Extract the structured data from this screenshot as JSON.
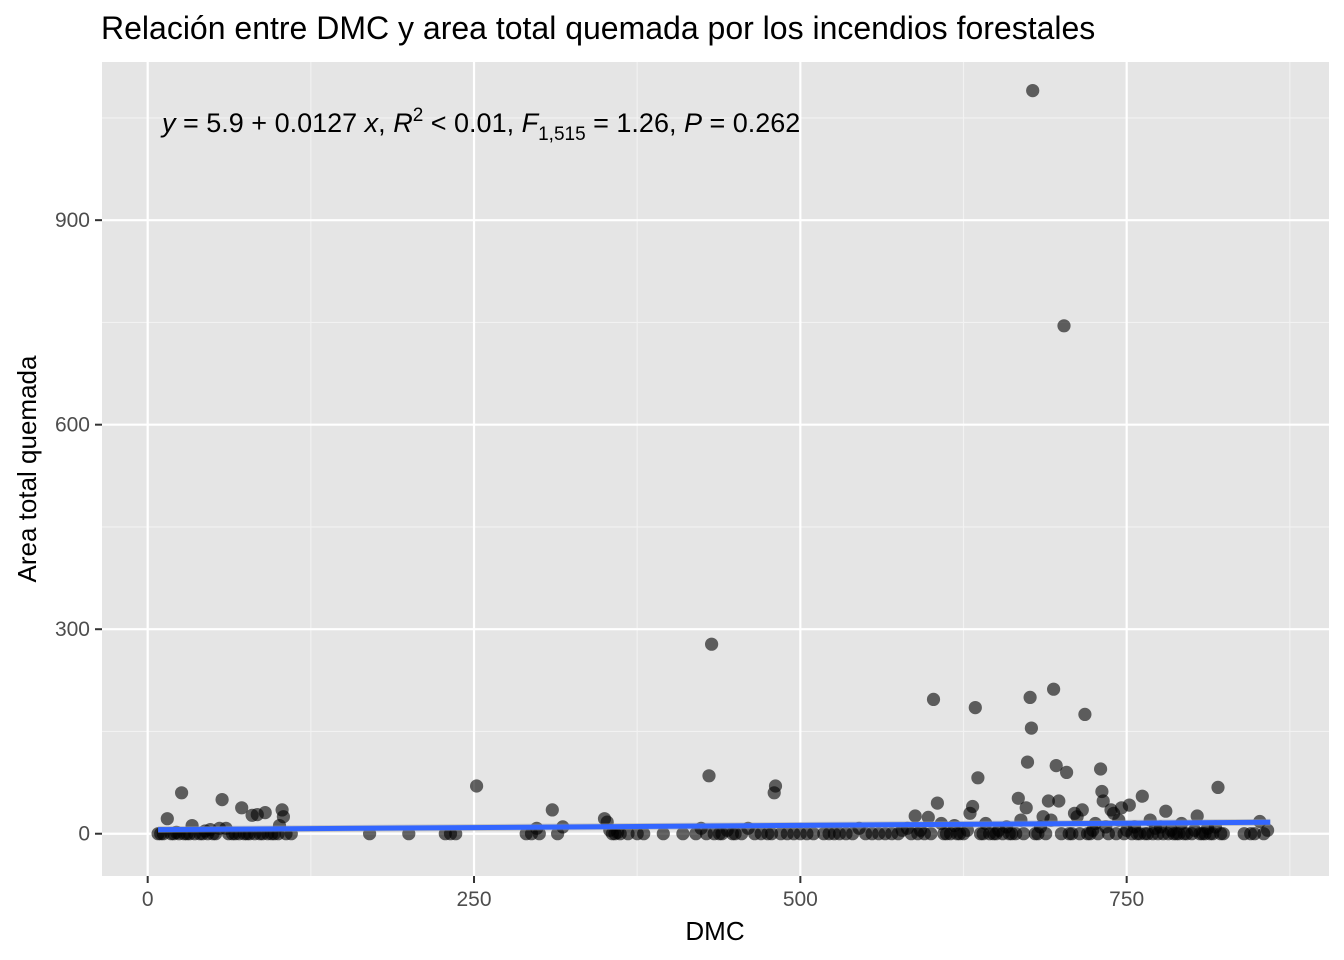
{
  "chart_data": {
    "type": "scatter",
    "title": "Relación entre DMC y area total quemada por los incendios forestales",
    "xlabel": "DMC",
    "ylabel": "Area total quemada",
    "xlim": [
      -35,
      905
    ],
    "ylim": [
      -62,
      1132
    ],
    "x_ticks": [
      0,
      250,
      500,
      750
    ],
    "x_tick_labels": [
      "0",
      "250",
      "500",
      "750"
    ],
    "y_ticks": [
      0,
      300,
      600,
      900
    ],
    "y_tick_labels": [
      "0",
      "300",
      "600",
      "900"
    ],
    "grid": true,
    "background": "#e5e5e5",
    "point_color": "#000000",
    "point_opacity": 0.6,
    "line_color": "#3366ff",
    "ribbon_color": "#999999",
    "annotation": {
      "y_var": "y",
      "equation_rhs": " = 5.9 + 0.0127 ",
      "x_var": "x",
      "r_var": "R",
      "r_sup": "2",
      "r_rest": " < 0.01, ",
      "f_var": "F",
      "f_sub": "1,515",
      "f_rest": " = 1.26, ",
      "p_var": "P",
      "p_rest": " = 0.262"
    },
    "fit": {
      "intercept": 5.9,
      "slope": 0.0127,
      "x_range": [
        8,
        860
      ]
    },
    "points": [
      [
        8,
        0
      ],
      [
        10,
        0
      ],
      [
        12,
        0
      ],
      [
        15,
        22
      ],
      [
        18,
        0
      ],
      [
        20,
        0
      ],
      [
        22,
        2
      ],
      [
        24,
        0
      ],
      [
        26,
        60
      ],
      [
        28,
        0
      ],
      [
        30,
        0
      ],
      [
        32,
        0
      ],
      [
        34,
        12
      ],
      [
        36,
        0
      ],
      [
        40,
        0
      ],
      [
        42,
        0
      ],
      [
        44,
        4
      ],
      [
        46,
        0
      ],
      [
        48,
        6
      ],
      [
        50,
        0
      ],
      [
        52,
        0
      ],
      [
        55,
        8
      ],
      [
        57,
        50
      ],
      [
        60,
        8
      ],
      [
        62,
        0
      ],
      [
        65,
        0
      ],
      [
        67,
        0
      ],
      [
        70,
        0
      ],
      [
        72,
        38
      ],
      [
        74,
        0
      ],
      [
        76,
        0
      ],
      [
        78,
        0
      ],
      [
        80,
        27
      ],
      [
        82,
        0
      ],
      [
        84,
        28
      ],
      [
        86,
        0
      ],
      [
        88,
        0
      ],
      [
        90,
        31
      ],
      [
        92,
        0
      ],
      [
        95,
        0
      ],
      [
        97,
        0
      ],
      [
        100,
        0
      ],
      [
        101,
        12
      ],
      [
        103,
        35
      ],
      [
        104,
        25
      ],
      [
        106,
        0
      ],
      [
        110,
        0
      ],
      [
        170,
        0
      ],
      [
        200,
        0
      ],
      [
        228,
        0
      ],
      [
        232,
        0
      ],
      [
        236,
        0
      ],
      [
        252,
        70
      ],
      [
        290,
        0
      ],
      [
        294,
        0
      ],
      [
        298,
        8
      ],
      [
        300,
        0
      ],
      [
        310,
        35
      ],
      [
        314,
        0
      ],
      [
        318,
        10
      ],
      [
        350,
        22
      ],
      [
        352,
        17
      ],
      [
        354,
        5
      ],
      [
        356,
        0
      ],
      [
        358,
        0
      ],
      [
        360,
        2
      ],
      [
        362,
        0
      ],
      [
        368,
        0
      ],
      [
        375,
        0
      ],
      [
        380,
        0
      ],
      [
        395,
        0
      ],
      [
        410,
        0
      ],
      [
        420,
        0
      ],
      [
        424,
        8
      ],
      [
        428,
        0
      ],
      [
        430,
        85
      ],
      [
        432,
        278
      ],
      [
        434,
        0
      ],
      [
        438,
        0
      ],
      [
        440,
        0
      ],
      [
        444,
        5
      ],
      [
        448,
        0
      ],
      [
        450,
        0
      ],
      [
        455,
        0
      ],
      [
        460,
        8
      ],
      [
        465,
        0
      ],
      [
        470,
        0
      ],
      [
        475,
        0
      ],
      [
        478,
        0
      ],
      [
        480,
        60
      ],
      [
        481,
        70
      ],
      [
        485,
        0
      ],
      [
        490,
        0
      ],
      [
        495,
        0
      ],
      [
        500,
        0
      ],
      [
        505,
        0
      ],
      [
        510,
        0
      ],
      [
        518,
        0
      ],
      [
        522,
        0
      ],
      [
        526,
        0
      ],
      [
        530,
        0
      ],
      [
        535,
        0
      ],
      [
        540,
        0
      ],
      [
        545,
        8
      ],
      [
        550,
        0
      ],
      [
        555,
        0
      ],
      [
        560,
        0
      ],
      [
        565,
        0
      ],
      [
        570,
        0
      ],
      [
        575,
        0
      ],
      [
        578,
        5
      ],
      [
        582,
        8
      ],
      [
        585,
        0
      ],
      [
        588,
        26
      ],
      [
        590,
        0
      ],
      [
        592,
        5
      ],
      [
        595,
        0
      ],
      [
        598,
        24
      ],
      [
        600,
        0
      ],
      [
        602,
        197
      ],
      [
        605,
        45
      ],
      [
        608,
        15
      ],
      [
        610,
        0
      ],
      [
        612,
        0
      ],
      [
        615,
        0
      ],
      [
        618,
        12
      ],
      [
        620,
        0
      ],
      [
        622,
        0
      ],
      [
        625,
        0
      ],
      [
        628,
        5
      ],
      [
        630,
        30
      ],
      [
        632,
        40
      ],
      [
        634,
        185
      ],
      [
        636,
        82
      ],
      [
        638,
        0
      ],
      [
        640,
        0
      ],
      [
        642,
        15
      ],
      [
        645,
        0
      ],
      [
        648,
        0
      ],
      [
        650,
        0
      ],
      [
        652,
        5
      ],
      [
        655,
        0
      ],
      [
        658,
        10
      ],
      [
        660,
        0
      ],
      [
        662,
        0
      ],
      [
        665,
        0
      ],
      [
        667,
        52
      ],
      [
        669,
        20
      ],
      [
        671,
        0
      ],
      [
        673,
        38
      ],
      [
        674,
        105
      ],
      [
        676,
        200
      ],
      [
        677,
        155
      ],
      [
        678,
        1090
      ],
      [
        680,
        0
      ],
      [
        682,
        0
      ],
      [
        684,
        10
      ],
      [
        686,
        25
      ],
      [
        688,
        0
      ],
      [
        690,
        48
      ],
      [
        692,
        20
      ],
      [
        694,
        212
      ],
      [
        696,
        100
      ],
      [
        698,
        48
      ],
      [
        700,
        0
      ],
      [
        702,
        745
      ],
      [
        704,
        90
      ],
      [
        706,
        0
      ],
      [
        708,
        0
      ],
      [
        710,
        30
      ],
      [
        712,
        25
      ],
      [
        714,
        0
      ],
      [
        716,
        35
      ],
      [
        718,
        175
      ],
      [
        720,
        0
      ],
      [
        722,
        0
      ],
      [
        724,
        5
      ],
      [
        726,
        15
      ],
      [
        728,
        0
      ],
      [
        730,
        95
      ],
      [
        731,
        62
      ],
      [
        732,
        48
      ],
      [
        734,
        10
      ],
      [
        736,
        0
      ],
      [
        738,
        35
      ],
      [
        740,
        30
      ],
      [
        742,
        0
      ],
      [
        744,
        20
      ],
      [
        746,
        38
      ],
      [
        748,
        0
      ],
      [
        750,
        5
      ],
      [
        752,
        42
      ],
      [
        754,
        0
      ],
      [
        756,
        10
      ],
      [
        758,
        0
      ],
      [
        760,
        0
      ],
      [
        762,
        55
      ],
      [
        764,
        0
      ],
      [
        766,
        0
      ],
      [
        768,
        20
      ],
      [
        770,
        0
      ],
      [
        772,
        8
      ],
      [
        774,
        0
      ],
      [
        776,
        10
      ],
      [
        778,
        0
      ],
      [
        780,
        33
      ],
      [
        782,
        0
      ],
      [
        784,
        5
      ],
      [
        786,
        0
      ],
      [
        788,
        0
      ],
      [
        790,
        0
      ],
      [
        792,
        15
      ],
      [
        794,
        0
      ],
      [
        796,
        0
      ],
      [
        800,
        0
      ],
      [
        802,
        5
      ],
      [
        804,
        26
      ],
      [
        806,
        0
      ],
      [
        808,
        0
      ],
      [
        810,
        0
      ],
      [
        812,
        8
      ],
      [
        814,
        0
      ],
      [
        816,
        0
      ],
      [
        818,
        10
      ],
      [
        820,
        68
      ],
      [
        822,
        0
      ],
      [
        824,
        0
      ],
      [
        840,
        0
      ],
      [
        845,
        0
      ],
      [
        848,
        0
      ],
      [
        852,
        18
      ],
      [
        855,
        0
      ],
      [
        858,
        5
      ]
    ]
  }
}
